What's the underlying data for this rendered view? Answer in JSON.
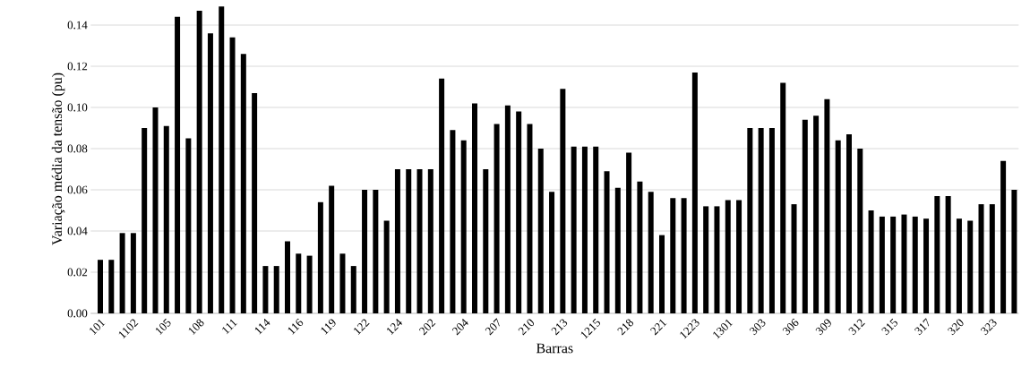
{
  "chart_data": {
    "type": "bar",
    "xlabel": "Barras",
    "ylabel": "Variação média da tensão (pu)",
    "categories": [
      "101",
      null,
      null,
      "1102",
      null,
      null,
      "105",
      null,
      null,
      "108",
      null,
      null,
      "111",
      null,
      null,
      "114",
      null,
      null,
      "116",
      null,
      null,
      "119",
      null,
      null,
      "122",
      null,
      null,
      "124",
      null,
      null,
      "202",
      null,
      null,
      "204",
      null,
      null,
      "207",
      null,
      null,
      "210",
      null,
      null,
      "213",
      null,
      null,
      "1215",
      null,
      null,
      "218",
      null,
      null,
      "221",
      null,
      null,
      "1223",
      null,
      null,
      "1301",
      null,
      null,
      "303",
      null,
      null,
      "306",
      null,
      null,
      "309",
      null,
      null,
      "312",
      null,
      null,
      "315",
      null,
      null,
      "317",
      null,
      null,
      "320",
      null,
      null,
      "323",
      null,
      null
    ],
    "values": [
      0.026,
      0.026,
      0.039,
      0.039,
      0.09,
      0.1,
      0.091,
      0.144,
      0.085,
      0.147,
      0.136,
      0.149,
      0.134,
      0.126,
      0.107,
      0.023,
      0.023,
      0.035,
      0.029,
      0.028,
      0.054,
      0.062,
      0.029,
      0.023,
      0.06,
      0.06,
      0.045,
      0.07,
      0.07,
      0.07,
      0.07,
      0.114,
      0.089,
      0.084,
      0.102,
      0.07,
      0.092,
      0.101,
      0.098,
      0.092,
      0.08,
      0.059,
      0.109,
      0.081,
      0.081,
      0.081,
      0.069,
      0.061,
      0.078,
      0.064,
      0.059,
      0.038,
      0.056,
      0.056,
      0.117,
      0.052,
      0.052,
      0.055,
      0.055,
      0.09,
      0.09,
      0.09,
      0.112,
      0.053,
      0.094,
      0.096,
      0.104,
      0.084,
      0.087,
      0.08,
      0.05,
      0.047,
      0.047,
      0.048,
      0.047,
      0.046,
      0.057,
      0.057,
      0.046,
      0.045,
      0.053,
      0.053,
      0.074,
      0.06
    ],
    "color": "#000000",
    "ylim": [
      0,
      0.15
    ],
    "yticks": [
      {
        "value": 0,
        "label": "0.00"
      },
      {
        "value": 0.02,
        "label": "0.02"
      },
      {
        "value": 0.04,
        "label": "0.04"
      },
      {
        "value": 0.06,
        "label": "0.06"
      },
      {
        "value": 0.08,
        "label": "0.08"
      },
      {
        "value": 0.1,
        "label": "0.10"
      },
      {
        "value": 0.12,
        "label": "0.12"
      },
      {
        "value": 0.14,
        "label": "0.14"
      }
    ],
    "grid": "y"
  }
}
